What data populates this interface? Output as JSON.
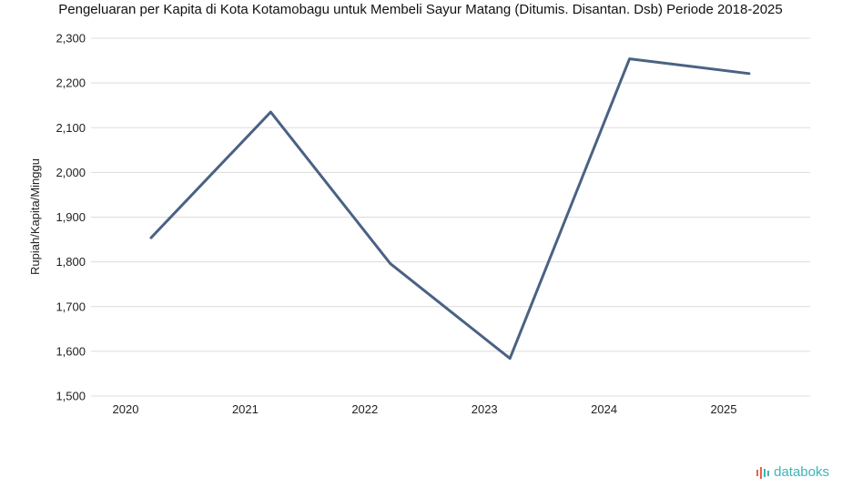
{
  "chart_data": {
    "type": "line",
    "title": "Pengeluaran per Kapita di Kota Kotamobagu untuk Membeli Sayur Matang (Ditumis. Disantan. Dsb) Periode 2018-2025",
    "xlabel": "",
    "ylabel": "Rupiah/Kapita/Minggu",
    "x": [
      "2020",
      "2021",
      "2022",
      "2023",
      "2024",
      "2025"
    ],
    "series": [
      {
        "values": [
          1854,
          2135,
          1796,
          1584,
          2254,
          2221
        ],
        "color": "#4a6283"
      }
    ],
    "ylim": [
      1500,
      2300
    ],
    "yticks": [
      "1,500",
      "1,600",
      "1,700",
      "1,800",
      "1,900",
      "2,000",
      "2,100",
      "2,200",
      "2,300"
    ],
    "grid": true,
    "legend": "none"
  },
  "branding": {
    "logo_text": "databoks",
    "logo_color": "#3fb3b7",
    "icon_color": "#e8604c"
  }
}
